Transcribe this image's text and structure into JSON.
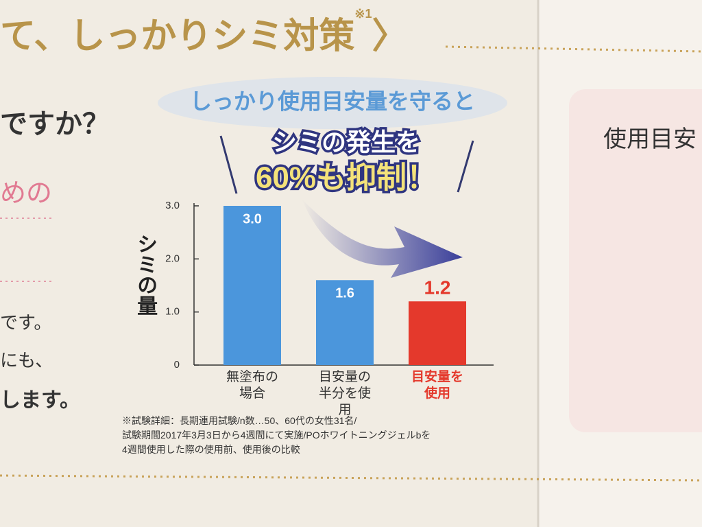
{
  "page": {
    "heading": "て、しっかりシミ対策",
    "heading_note": "※1",
    "heading_bracket": "〉",
    "left_texts": [
      "ですか？",
      "めの",
      "です。",
      "にも、",
      "します。"
    ],
    "right_text": "使用目安"
  },
  "chart_data": {
    "type": "bar",
    "callout": "しっかり使用目安量を守ると",
    "headline_1": "シミの発生を",
    "headline_2": "60%も抑制！",
    "ylabel": "シミの量",
    "categories": [
      "無塗布の場合",
      "目安量の半分を使用",
      "目安量を使用"
    ],
    "values": [
      3,
      1.6,
      1.2
    ],
    "value_labels": [
      "3.0",
      "1.6",
      "1.2"
    ],
    "colors": [
      "#4b96dc",
      "#4b96dc",
      "#e4392c"
    ],
    "ylim": [
      0,
      3
    ],
    "yticks": [
      0,
      {
        "value": 1,
        "label": "1.0"
      },
      {
        "value": 2,
        "label": "2.0"
      },
      {
        "value": 3,
        "label": "3.0"
      }
    ],
    "footnote": [
      "※試験詳細：長期連用試験/n数…50、60代の女性31名/",
      "試験期間2017年3月3日から4週間にて実施/POホワイトニングジェルbを",
      "4週間使用した際の使用前、使用後の比較"
    ]
  }
}
